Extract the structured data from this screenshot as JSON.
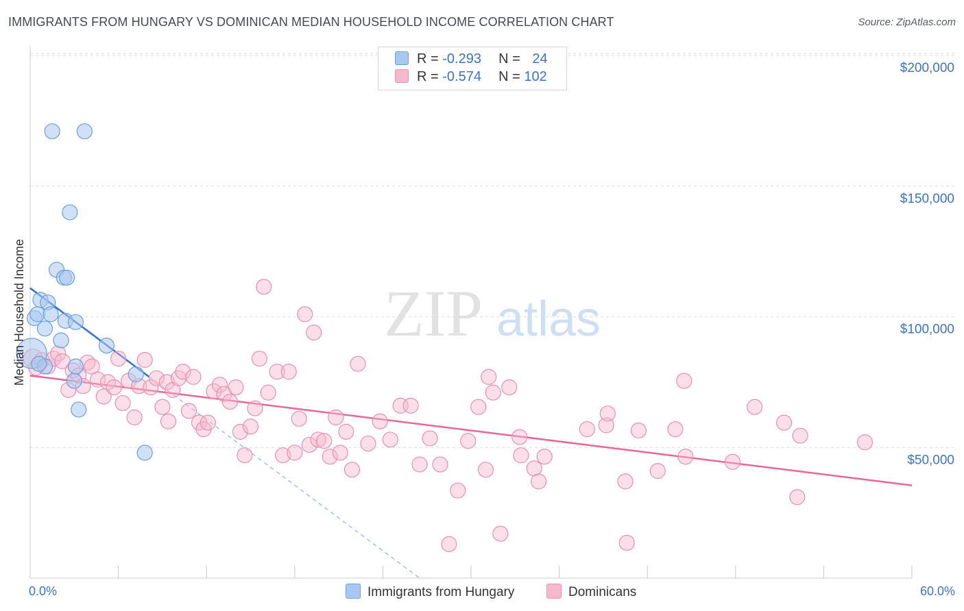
{
  "title": "IMMIGRANTS FROM HUNGARY VS DOMINICAN MEDIAN HOUSEHOLD INCOME CORRELATION CHART",
  "source": "Source: ZipAtlas.com",
  "watermark": {
    "zip": "ZIP",
    "atlas": "atlas"
  },
  "legend": {
    "rows": [
      {
        "r_label": "R =",
        "r_value": "-0.293",
        "n_label": "N =",
        "n_value": "24",
        "color": "#a9c8f0"
      },
      {
        "r_label": "R =",
        "r_value": "-0.574",
        "n_label": "N =",
        "n_value": "102",
        "color": "#f6b8cc"
      }
    ]
  },
  "bottom_legend": {
    "series1": "Immigrants from Hungary",
    "series2": "Dominicans"
  },
  "colors": {
    "blue_fill": "#a9c8f0",
    "blue_stroke": "#6a9fe0",
    "blue_line": "#2f6fd0",
    "pink_fill": "#f6b8cc",
    "pink_stroke": "#ec8fb0",
    "pink_line": "#e8649a",
    "grid": "#dddddd",
    "label": "#3b74c2"
  },
  "chart_data": {
    "type": "scatter",
    "title": "IMMIGRANTS FROM HUNGARY VS DOMINICAN MEDIAN HOUSEHOLD INCOME CORRELATION CHART",
    "xlabel": "",
    "ylabel": "Median Household Income",
    "xlim": [
      0,
      60
    ],
    "ylim": [
      0,
      205000
    ],
    "x_tick_labels": [
      "0.0%",
      "60.0%"
    ],
    "y_ticks": [
      50000,
      100000,
      150000,
      200000
    ],
    "y_tick_labels": [
      "$50,000",
      "$100,000",
      "$150,000",
      "$200,000"
    ],
    "series": [
      {
        "name": "Immigrants from Hungary",
        "r": -0.293,
        "n": 24,
        "points": [
          [
            0.1,
            86000,
            22
          ],
          [
            0.3,
            99500,
            11
          ],
          [
            0.5,
            101000,
            11
          ],
          [
            0.7,
            106500,
            11
          ],
          [
            1.0,
            95500,
            11
          ],
          [
            1.2,
            105500,
            11
          ],
          [
            1.4,
            101000,
            11
          ],
          [
            1.5,
            171000,
            11
          ],
          [
            1.8,
            118000,
            11
          ],
          [
            2.1,
            91000,
            11
          ],
          [
            2.3,
            115000,
            11
          ],
          [
            2.4,
            98500,
            11
          ],
          [
            2.5,
            115000,
            11
          ],
          [
            2.7,
            140000,
            11
          ],
          [
            3.1,
            98000,
            11
          ],
          [
            3.3,
            64500,
            11
          ],
          [
            3.7,
            171000,
            11
          ],
          [
            5.2,
            89000,
            11
          ],
          [
            7.2,
            78000,
            11
          ],
          [
            7.8,
            48000,
            11
          ],
          [
            1.0,
            81000,
            11
          ],
          [
            3.0,
            75500,
            11
          ],
          [
            0.6,
            82000,
            11
          ],
          [
            3.1,
            81000,
            11
          ]
        ],
        "trend": {
          "x": [
            0,
            8.1
          ],
          "y": [
            111000,
            77000
          ],
          "dashed_extension": {
            "x": [
              8.1,
              26.5
            ],
            "y": [
              77000,
              0
            ]
          }
        }
      },
      {
        "name": "Dominicans",
        "r": -0.574,
        "n": 102,
        "points": [
          [
            0.2,
            84000,
            14
          ],
          [
            0.4,
            80500,
            11
          ],
          [
            0.8,
            83500,
            11
          ],
          [
            1.2,
            81000,
            11
          ],
          [
            1.6,
            84000,
            11
          ],
          [
            1.9,
            86000,
            11
          ],
          [
            2.2,
            83000,
            11
          ],
          [
            2.6,
            72000,
            11
          ],
          [
            2.9,
            79500,
            11
          ],
          [
            3.3,
            77500,
            11
          ],
          [
            3.6,
            73500,
            11
          ],
          [
            3.9,
            82500,
            11
          ],
          [
            4.2,
            81000,
            11
          ],
          [
            4.6,
            76000,
            11
          ],
          [
            5.0,
            69500,
            11
          ],
          [
            5.3,
            75000,
            11
          ],
          [
            5.7,
            73000,
            11
          ],
          [
            6.0,
            84000,
            11
          ],
          [
            6.3,
            67000,
            11
          ],
          [
            6.7,
            75500,
            11
          ],
          [
            7.1,
            61500,
            11
          ],
          [
            7.4,
            73500,
            11
          ],
          [
            7.8,
            83500,
            11
          ],
          [
            8.2,
            73000,
            11
          ],
          [
            8.6,
            76500,
            11
          ],
          [
            9.0,
            65500,
            11
          ],
          [
            9.3,
            75000,
            11
          ],
          [
            9.7,
            72000,
            11
          ],
          [
            10.1,
            76500,
            11
          ],
          [
            10.4,
            79000,
            11
          ],
          [
            10.8,
            64000,
            11
          ],
          [
            11.1,
            77000,
            11
          ],
          [
            11.5,
            59500,
            11
          ],
          [
            11.8,
            57000,
            11
          ],
          [
            12.1,
            59500,
            11
          ],
          [
            12.5,
            71500,
            11
          ],
          [
            12.9,
            74000,
            11
          ],
          [
            13.2,
            70500,
            11
          ],
          [
            13.6,
            67500,
            11
          ],
          [
            14.0,
            73000,
            11
          ],
          [
            14.3,
            56000,
            11
          ],
          [
            14.6,
            47000,
            11
          ],
          [
            15.0,
            58000,
            11
          ],
          [
            15.3,
            65000,
            11
          ],
          [
            15.6,
            84000,
            11
          ],
          [
            15.9,
            111500,
            11
          ],
          [
            16.2,
            71000,
            11
          ],
          [
            16.8,
            79000,
            11
          ],
          [
            17.2,
            47000,
            11
          ],
          [
            17.6,
            79000,
            11
          ],
          [
            18.0,
            48000,
            11
          ],
          [
            18.3,
            61000,
            11
          ],
          [
            18.7,
            101000,
            11
          ],
          [
            19.0,
            51000,
            11
          ],
          [
            19.3,
            94000,
            11
          ],
          [
            19.6,
            53000,
            11
          ],
          [
            20.0,
            52500,
            11
          ],
          [
            20.4,
            46500,
            11
          ],
          [
            20.8,
            61500,
            11
          ],
          [
            21.1,
            48000,
            11
          ],
          [
            21.5,
            56000,
            11
          ],
          [
            21.9,
            41500,
            11
          ],
          [
            22.3,
            82000,
            11
          ],
          [
            23.0,
            51500,
            11
          ],
          [
            23.8,
            60000,
            11
          ],
          [
            24.5,
            53000,
            11
          ],
          [
            25.2,
            66000,
            11
          ],
          [
            25.9,
            66000,
            11
          ],
          [
            26.5,
            43500,
            11
          ],
          [
            27.2,
            53500,
            11
          ],
          [
            27.9,
            43500,
            11
          ],
          [
            28.5,
            13000,
            11
          ],
          [
            29.1,
            33500,
            11
          ],
          [
            29.8,
            52500,
            11
          ],
          [
            30.5,
            65500,
            11
          ],
          [
            31.0,
            41500,
            11
          ],
          [
            31.2,
            77000,
            11
          ],
          [
            31.5,
            71000,
            11
          ],
          [
            32.0,
            17000,
            11
          ],
          [
            32.6,
            73000,
            11
          ],
          [
            33.3,
            54000,
            11
          ],
          [
            33.4,
            47000,
            11
          ],
          [
            34.3,
            42000,
            11
          ],
          [
            34.6,
            37000,
            11
          ],
          [
            35.0,
            46500,
            11
          ],
          [
            37.9,
            57000,
            11
          ],
          [
            39.2,
            58500,
            11
          ],
          [
            39.3,
            63000,
            11
          ],
          [
            40.5,
            37000,
            11
          ],
          [
            40.6,
            13500,
            11
          ],
          [
            41.4,
            56500,
            11
          ],
          [
            42.7,
            41000,
            11
          ],
          [
            43.9,
            57000,
            11
          ],
          [
            44.5,
            75500,
            11
          ],
          [
            44.6,
            46500,
            11
          ],
          [
            47.8,
            44500,
            11
          ],
          [
            49.3,
            65500,
            11
          ],
          [
            51.3,
            59500,
            11
          ],
          [
            52.2,
            31000,
            11
          ],
          [
            52.4,
            54500,
            11
          ],
          [
            56.8,
            52000,
            11
          ],
          [
            9.4,
            60000,
            11
          ]
        ],
        "trend": {
          "x": [
            0,
            60
          ],
          "y": [
            77500,
            35500
          ]
        }
      }
    ]
  }
}
